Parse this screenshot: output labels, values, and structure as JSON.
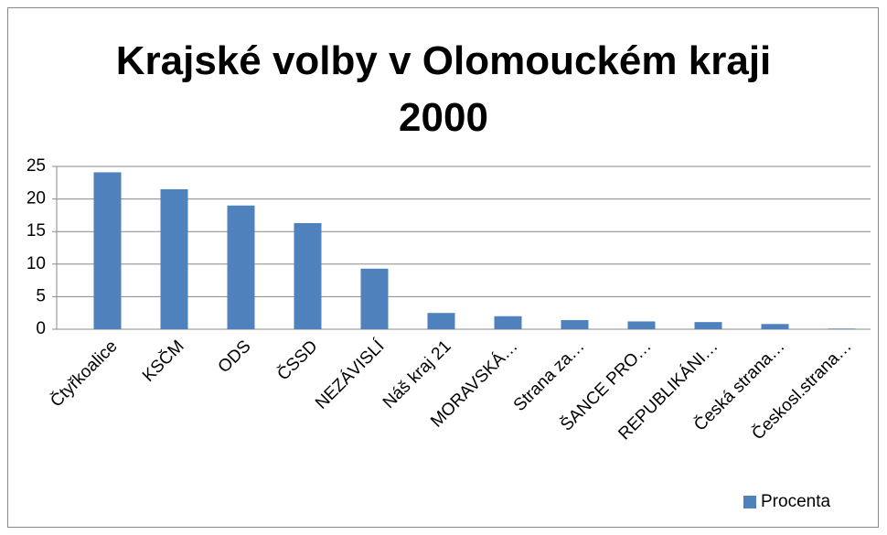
{
  "chart_data": {
    "type": "bar",
    "title": "Krajské volby v Olomouckém kraji 2000",
    "categories": [
      "Čtyřkoalice",
      "KSČM",
      "ODS",
      "ČSSD",
      "NEZÁVISLÍ",
      "Náš kraj 21",
      "MORAVSKÁ…",
      "Strana za…",
      "ŠANCE PRO…",
      "REPUBLIKÁNI…",
      "Česká strana…",
      "Českosl.strana…"
    ],
    "series": [
      {
        "name": "Procenta",
        "color": "#4f81bd",
        "values": [
          24.1,
          21.5,
          19.0,
          16.3,
          9.3,
          2.5,
          2.0,
          1.4,
          1.2,
          1.1,
          0.8,
          0.1
        ]
      }
    ],
    "ylim": [
      0,
      25
    ],
    "yticks": [
      0,
      5,
      10,
      15,
      20,
      25
    ],
    "grid": true,
    "legend": "bottom-right"
  }
}
